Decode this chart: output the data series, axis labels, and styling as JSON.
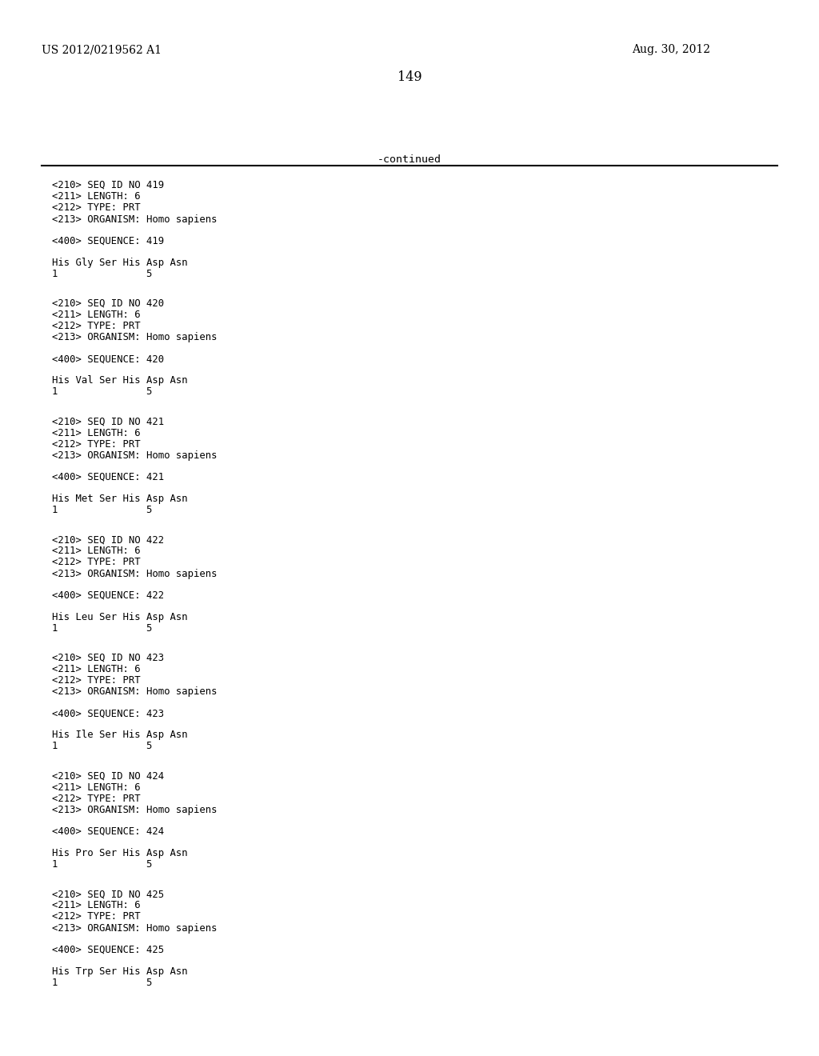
{
  "header_left": "US 2012/0219562 A1",
  "header_right": "Aug. 30, 2012",
  "page_number": "149",
  "continued_label": "-continued",
  "background_color": "#ffffff",
  "text_color": "#000000",
  "sequences": [
    {
      "seq_id": "419",
      "length": "6",
      "type": "PRT",
      "organism": "Homo sapiens",
      "sequence_line1": "His Gly Ser His Asp Asn",
      "sequence_line2": "1               5"
    },
    {
      "seq_id": "420",
      "length": "6",
      "type": "PRT",
      "organism": "Homo sapiens",
      "sequence_line1": "His Val Ser His Asp Asn",
      "sequence_line2": "1               5"
    },
    {
      "seq_id": "421",
      "length": "6",
      "type": "PRT",
      "organism": "Homo sapiens",
      "sequence_line1": "His Met Ser His Asp Asn",
      "sequence_line2": "1               5"
    },
    {
      "seq_id": "422",
      "length": "6",
      "type": "PRT",
      "organism": "Homo sapiens",
      "sequence_line1": "His Leu Ser His Asp Asn",
      "sequence_line2": "1               5"
    },
    {
      "seq_id": "423",
      "length": "6",
      "type": "PRT",
      "organism": "Homo sapiens",
      "sequence_line1": "His Ile Ser His Asp Asn",
      "sequence_line2": "1               5"
    },
    {
      "seq_id": "424",
      "length": "6",
      "type": "PRT",
      "organism": "Homo sapiens",
      "sequence_line1": "His Pro Ser His Asp Asn",
      "sequence_line2": "1               5"
    },
    {
      "seq_id": "425",
      "length": "6",
      "type": "PRT",
      "organism": "Homo sapiens",
      "sequence_line1": "His Trp Ser His Asp Asn",
      "sequence_line2": "1               5"
    }
  ]
}
